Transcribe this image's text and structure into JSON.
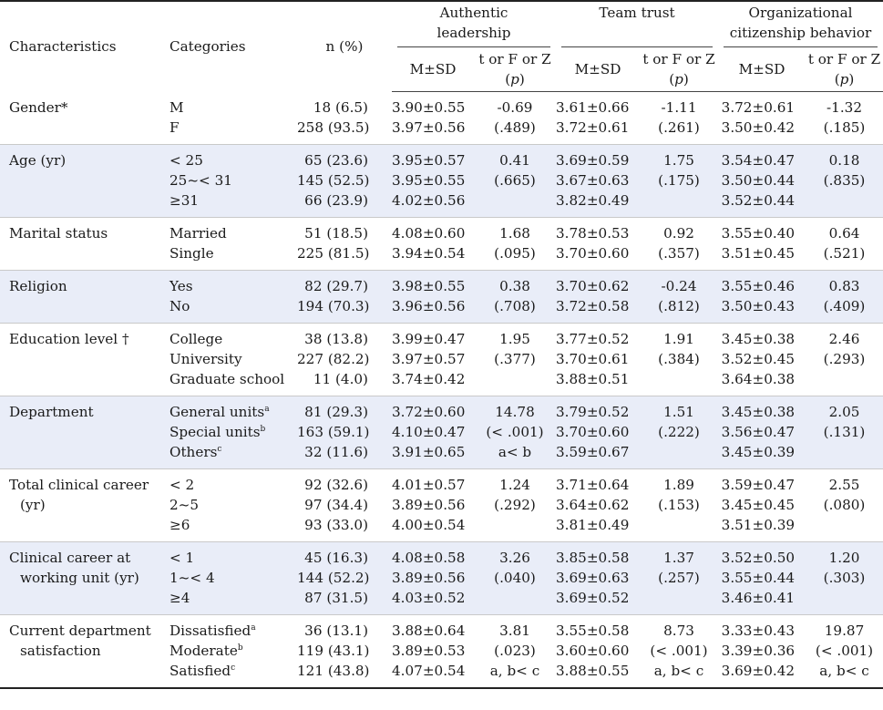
{
  "header": {
    "characteristics": "Characteristics",
    "categories": "Categories",
    "n_pct": "n (%)",
    "groups": [
      {
        "line1": "Authentic",
        "line2": "leadership"
      },
      {
        "line1": "Team trust",
        "line2": ""
      },
      {
        "line1": "Organizational",
        "line2": "citizenship behavior"
      }
    ],
    "msd": "M±SD",
    "stat_line1": "t or F or Z",
    "stat_p_open": "(",
    "stat_p": "p",
    "stat_p_close": ")"
  },
  "rows": [
    {
      "char": [
        "Gender*"
      ],
      "cats": [
        "M",
        "F"
      ],
      "n": [
        "18 (6.5)",
        "258 (93.5)"
      ],
      "al_m": [
        "3.90±0.55",
        "3.97±0.56"
      ],
      "al_t": [
        "-0.69",
        "(.489)"
      ],
      "tt_m": [
        "3.61±0.66",
        "3.72±0.61"
      ],
      "tt_t": [
        "-1.11",
        "(.261)"
      ],
      "ocb_m": [
        "3.72±0.61",
        "3.50±0.42"
      ],
      "ocb_t": [
        "-1.32",
        "(.185)"
      ]
    },
    {
      "char": [
        "Age (yr)"
      ],
      "cats": [
        "< 25",
        "25~< 31",
        "≥31"
      ],
      "n": [
        "65 (23.6)",
        "145 (52.5)",
        "66 (23.9)"
      ],
      "al_m": [
        "3.95±0.57",
        "3.95±0.55",
        "4.02±0.56"
      ],
      "al_t": [
        "0.41",
        "(.665)"
      ],
      "tt_m": [
        "3.69±0.59",
        "3.67±0.63",
        "3.82±0.49"
      ],
      "tt_t": [
        "1.75",
        "(.175)"
      ],
      "ocb_m": [
        "3.54±0.47",
        "3.50±0.44",
        "3.52±0.44"
      ],
      "ocb_t": [
        "0.18",
        "(.835)"
      ]
    },
    {
      "char": [
        "Marital status"
      ],
      "cats": [
        "Married",
        "Single"
      ],
      "n": [
        "51 (18.5)",
        "225 (81.5)"
      ],
      "al_m": [
        "4.08±0.60",
        "3.94±0.54"
      ],
      "al_t": [
        "1.68",
        "(.095)"
      ],
      "tt_m": [
        "3.78±0.53",
        "3.70±0.60"
      ],
      "tt_t": [
        "0.92",
        "(.357)"
      ],
      "ocb_m": [
        "3.55±0.40",
        "3.51±0.45"
      ],
      "ocb_t": [
        "0.64",
        "(.521)"
      ]
    },
    {
      "char": [
        "Religion"
      ],
      "cats": [
        "Yes",
        "No"
      ],
      "n": [
        "82 (29.7)",
        "194 (70.3)"
      ],
      "al_m": [
        "3.98±0.55",
        "3.96±0.56"
      ],
      "al_t": [
        "0.38",
        "(.708)"
      ],
      "tt_m": [
        "3.70±0.62",
        "3.72±0.58"
      ],
      "tt_t": [
        "-0.24",
        "(.812)"
      ],
      "ocb_m": [
        "3.55±0.46",
        "3.50±0.43"
      ],
      "ocb_t": [
        "0.83",
        "(.409)"
      ]
    },
    {
      "char": [
        "Education level †"
      ],
      "cats": [
        "College",
        "University",
        "Graduate school"
      ],
      "n": [
        "38 (13.8)",
        "227 (82.2)",
        "11 (4.0)"
      ],
      "al_m": [
        "3.99±0.47",
        "3.97±0.57",
        "3.74±0.42"
      ],
      "al_t": [
        "1.95",
        "(.377)"
      ],
      "tt_m": [
        "3.77±0.52",
        "3.70±0.61",
        "3.88±0.51"
      ],
      "tt_t": [
        "1.91",
        "(.384)"
      ],
      "ocb_m": [
        "3.45±0.38",
        "3.52±0.45",
        "3.64±0.38"
      ],
      "ocb_t": [
        "2.46",
        "(.293)"
      ]
    },
    {
      "char": [
        "Department"
      ],
      "cats": [
        "General units",
        "Special units",
        "Others"
      ],
      "cat_sups": [
        "a",
        "b",
        "c"
      ],
      "n": [
        "81 (29.3)",
        "163 (59.1)",
        "32 (11.6)"
      ],
      "al_m": [
        "3.72±0.60",
        "4.10±0.47",
        "3.91±0.65"
      ],
      "al_t": [
        "14.78",
        "(< .001)",
        "a< b"
      ],
      "tt_m": [
        "3.79±0.52",
        "3.70±0.60",
        "3.59±0.67"
      ],
      "tt_t": [
        "1.51",
        "(.222)"
      ],
      "ocb_m": [
        "3.45±0.38",
        "3.56±0.47",
        "3.45±0.39"
      ],
      "ocb_t": [
        "2.05",
        "(.131)"
      ]
    },
    {
      "char": [
        "Total clinical career",
        "(yr)"
      ],
      "cats": [
        "< 2",
        "2~5",
        "≥6"
      ],
      "n": [
        "92 (32.6)",
        "97 (34.4)",
        "93 (33.0)"
      ],
      "al_m": [
        "4.01±0.57",
        "3.89±0.56",
        "4.00±0.54"
      ],
      "al_t": [
        "1.24",
        "(.292)"
      ],
      "tt_m": [
        "3.71±0.64",
        "3.64±0.62",
        "3.81±0.49"
      ],
      "tt_t": [
        "1.89",
        "(.153)"
      ],
      "ocb_m": [
        "3.59±0.47",
        "3.45±0.45",
        "3.51±0.39"
      ],
      "ocb_t": [
        "2.55",
        "(.080)"
      ]
    },
    {
      "char": [
        "Clinical career at",
        "working unit (yr)"
      ],
      "cats": [
        "< 1",
        "1~< 4",
        "≥4"
      ],
      "n": [
        "45 (16.3)",
        "144 (52.2)",
        "87 (31.5)"
      ],
      "al_m": [
        "4.08±0.58",
        "3.89±0.56",
        "4.03±0.52"
      ],
      "al_t": [
        "3.26",
        "(.040)"
      ],
      "tt_m": [
        "3.85±0.58",
        "3.69±0.63",
        "3.69±0.52"
      ],
      "tt_t": [
        "1.37",
        "(.257)"
      ],
      "ocb_m": [
        "3.52±0.50",
        "3.55±0.44",
        "3.46±0.41"
      ],
      "ocb_t": [
        "1.20",
        "(.303)"
      ]
    },
    {
      "char": [
        "Current department",
        "satisfaction"
      ],
      "cats": [
        "Dissatisfied",
        "Moderate",
        "Satisfied"
      ],
      "cat_sups": [
        "a",
        "b",
        "c"
      ],
      "n": [
        "36 (13.1)",
        "119 (43.1)",
        "121 (43.8)"
      ],
      "al_m": [
        "3.88±0.64",
        "3.89±0.53",
        "4.07±0.54"
      ],
      "al_t": [
        "3.81",
        "(.023)",
        "a, b< c"
      ],
      "tt_m": [
        "3.55±0.58",
        "3.60±0.60",
        "3.88±0.55"
      ],
      "tt_t": [
        "8.73",
        "(< .001)",
        "a, b< c"
      ],
      "ocb_m": [
        "3.33±0.43",
        "3.39±0.36",
        "3.69±0.42"
      ],
      "ocb_t": [
        "19.87",
        "(< .001)",
        "a, b< c"
      ]
    }
  ]
}
